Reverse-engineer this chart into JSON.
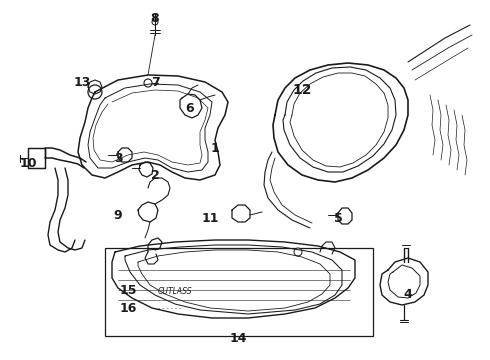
{
  "background_color": "#ffffff",
  "line_color": "#1a1a1a",
  "fig_width": 4.9,
  "fig_height": 3.6,
  "dpi": 100,
  "labels": [
    [
      "8",
      155,
      18,
      9
    ],
    [
      "13",
      82,
      82,
      9
    ],
    [
      "7",
      155,
      82,
      9
    ],
    [
      "6",
      190,
      108,
      9
    ],
    [
      "1",
      215,
      148,
      9
    ],
    [
      "3",
      118,
      158,
      9
    ],
    [
      "2",
      155,
      175,
      9
    ],
    [
      "10",
      28,
      163,
      9
    ],
    [
      "9",
      118,
      215,
      9
    ],
    [
      "11",
      210,
      218,
      9
    ],
    [
      "12",
      302,
      90,
      10
    ],
    [
      "5",
      338,
      218,
      9
    ],
    [
      "15",
      128,
      290,
      9
    ],
    [
      "16",
      128,
      308,
      9
    ],
    [
      "14",
      238,
      338,
      9
    ],
    [
      "4",
      408,
      295,
      9
    ]
  ]
}
